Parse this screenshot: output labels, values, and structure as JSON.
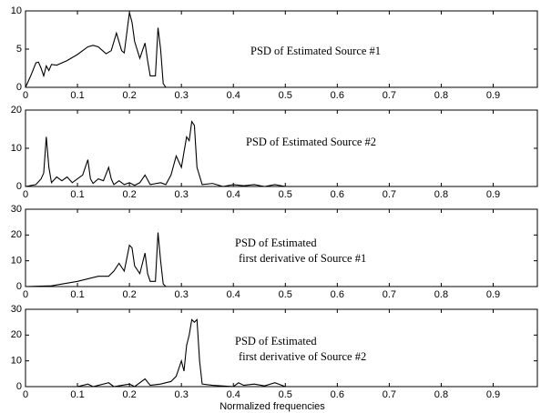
{
  "chart_data": [
    {
      "type": "line",
      "annotation": [
        "PSD of Estimated Source #1"
      ],
      "x": [
        0,
        0.01,
        0.02,
        0.025,
        0.03,
        0.035,
        0.04,
        0.045,
        0.05,
        0.06,
        0.08,
        0.1,
        0.12,
        0.13,
        0.14,
        0.155,
        0.165,
        0.175,
        0.185,
        0.19,
        0.2,
        0.205,
        0.21,
        0.22,
        0.23,
        0.235,
        0.24,
        0.25,
        0.255,
        0.26,
        0.265,
        0.27,
        0.3,
        0.985
      ],
      "values": [
        0,
        1.5,
        3.2,
        3.3,
        2.5,
        1.5,
        2.8,
        2.2,
        3.0,
        2.9,
        3.5,
        4.3,
        5.3,
        5.5,
        5.3,
        4.4,
        4.8,
        7.1,
        4.8,
        4.5,
        9.8,
        8.5,
        6,
        3.8,
        5.8,
        3.5,
        1.5,
        1.5,
        7.8,
        5,
        0.5,
        0,
        0,
        0
      ],
      "xlim": [
        0,
        0.985
      ],
      "ylim": [
        0,
        10
      ],
      "xticks": [
        0,
        0.1,
        0.2,
        0.3,
        0.4,
        0.5,
        0.6,
        0.7,
        0.8,
        0.9
      ],
      "yticks": [
        0,
        5,
        10
      ],
      "color": "#000000"
    },
    {
      "type": "line",
      "annotation": [
        "PSD of Estimated Source #2"
      ],
      "x": [
        0,
        0.02,
        0.03,
        0.035,
        0.04,
        0.045,
        0.05,
        0.06,
        0.07,
        0.08,
        0.09,
        0.1,
        0.11,
        0.12,
        0.125,
        0.13,
        0.14,
        0.15,
        0.16,
        0.165,
        0.17,
        0.18,
        0.19,
        0.2,
        0.21,
        0.22,
        0.23,
        0.24,
        0.26,
        0.27,
        0.28,
        0.29,
        0.3,
        0.31,
        0.315,
        0.32,
        0.325,
        0.33,
        0.34,
        0.36,
        0.38,
        0.4,
        0.42,
        0.44,
        0.46,
        0.48,
        0.5,
        0.985
      ],
      "values": [
        0,
        0.5,
        2,
        3.5,
        13,
        5,
        1,
        2.5,
        1.5,
        2.5,
        1,
        2,
        3,
        7,
        2,
        0.8,
        2,
        1.5,
        5,
        2,
        0.5,
        1.5,
        0.5,
        1,
        0.3,
        1,
        3,
        0.5,
        1,
        0.5,
        3,
        8,
        5,
        13,
        12,
        17,
        16,
        5,
        0.5,
        0.8,
        0,
        0.5,
        0.2,
        0.5,
        0,
        0.5,
        0,
        0
      ],
      "xlim": [
        0,
        0.985
      ],
      "ylim": [
        0,
        20
      ],
      "xticks": [
        0,
        0.1,
        0.2,
        0.3,
        0.4,
        0.5,
        0.6,
        0.7,
        0.8,
        0.9
      ],
      "yticks": [
        0,
        10,
        20
      ],
      "color": "#000000"
    },
    {
      "type": "line",
      "annotation": [
        "PSD of Estimated",
        "first derivative of Source #1"
      ],
      "x": [
        0,
        0.05,
        0.1,
        0.14,
        0.16,
        0.17,
        0.18,
        0.19,
        0.2,
        0.205,
        0.21,
        0.22,
        0.23,
        0.235,
        0.24,
        0.25,
        0.255,
        0.26,
        0.265,
        0.27,
        0.985
      ],
      "values": [
        0,
        0.3,
        2,
        4,
        4,
        6,
        9,
        6,
        16,
        15,
        8,
        5,
        13,
        5,
        2,
        2,
        21,
        10,
        1,
        0,
        0
      ],
      "xlim": [
        0,
        0.985
      ],
      "ylim": [
        0,
        30
      ],
      "xticks": [
        0,
        0.1,
        0.2,
        0.3,
        0.4,
        0.5,
        0.6,
        0.7,
        0.8,
        0.9
      ],
      "yticks": [
        0,
        10,
        20,
        30
      ],
      "color": "#000000"
    },
    {
      "type": "line",
      "annotation": [
        "PSD of Estimated",
        "first derivative of Source #2"
      ],
      "xlabel": "Normalized frequencies",
      "x": [
        0,
        0.1,
        0.12,
        0.13,
        0.16,
        0.17,
        0.2,
        0.21,
        0.23,
        0.24,
        0.26,
        0.28,
        0.29,
        0.3,
        0.305,
        0.31,
        0.315,
        0.32,
        0.325,
        0.33,
        0.335,
        0.34,
        0.36,
        0.4,
        0.41,
        0.42,
        0.44,
        0.46,
        0.48,
        0.5,
        0.985
      ],
      "values": [
        0,
        0,
        1,
        0,
        1.5,
        0,
        1,
        0,
        3,
        0.5,
        1,
        2,
        4,
        10,
        6,
        16,
        20,
        26,
        25,
        26,
        10,
        1,
        0.5,
        0,
        1.5,
        0.5,
        1,
        0.3,
        1.5,
        0,
        0
      ],
      "xlim": [
        0,
        0.985
      ],
      "ylim": [
        0,
        30
      ],
      "xticks": [
        0,
        0.1,
        0.2,
        0.3,
        0.4,
        0.5,
        0.6,
        0.7,
        0.8,
        0.9
      ],
      "yticks": [
        0,
        10,
        20,
        30
      ],
      "color": "#000000"
    }
  ]
}
